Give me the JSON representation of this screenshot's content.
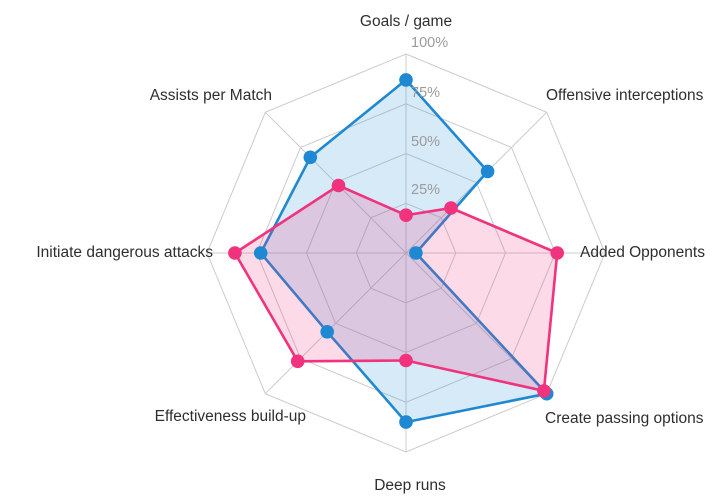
{
  "chart_data": {
    "type": "radar",
    "categories": [
      "Goals / game",
      "Offensive interceptions",
      "Added Opponents",
      "Create passing options",
      "Deep runs",
      "Effectiveness build-up",
      "Initiate dangerous attacks",
      "Assists per Match"
    ],
    "series": [
      {
        "color": "#1F88D2",
        "fill_opacity": 0.18,
        "values": [
          87,
          58,
          5,
          100,
          85,
          56,
          73,
          68
        ]
      },
      {
        "color": "#F0337C",
        "fill_opacity": 0.18,
        "values": [
          19,
          32,
          76,
          98,
          54,
          77,
          86,
          48
        ]
      }
    ],
    "rings_pct": [
      25,
      50,
      75,
      100
    ],
    "tick_labels": [
      "25%",
      "50%",
      "75%",
      "100%"
    ],
    "value_range": [
      0,
      100
    ],
    "grid": "on",
    "grid_color": "#CCCCCC",
    "axis_label_color": "#2E2E2E",
    "tick_label_color": "#9B9B9B",
    "legend_position": "none",
    "title": ""
  }
}
